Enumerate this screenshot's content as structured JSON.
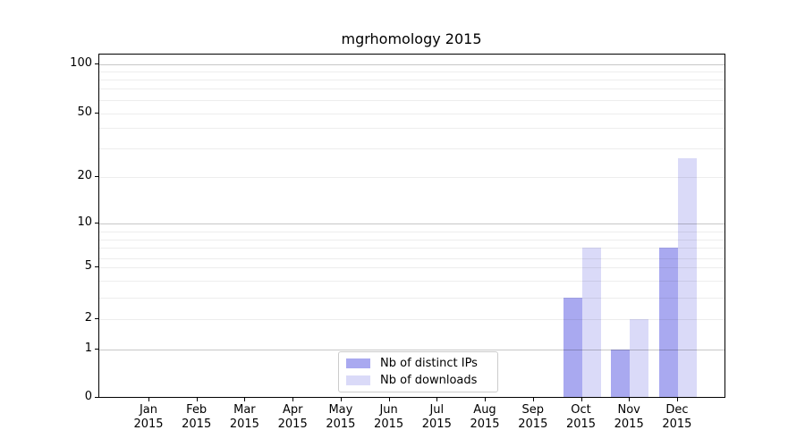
{
  "chart_data": {
    "type": "bar",
    "title": "mgrhomology 2015",
    "year_label": "2015",
    "categories": [
      "Jan",
      "Feb",
      "Mar",
      "Apr",
      "May",
      "Jun",
      "Jul",
      "Aug",
      "Sep",
      "Oct",
      "Nov",
      "Dec"
    ],
    "series": [
      {
        "name": "Nb of distinct IPs",
        "color": "#a9a9f0",
        "values": [
          0,
          0,
          0,
          0,
          0,
          0,
          0,
          0,
          0,
          3,
          1,
          7
        ]
      },
      {
        "name": "Nb of downloads",
        "color": "#dadaf8",
        "values": [
          0,
          0,
          0,
          0,
          0,
          0,
          0,
          0,
          0,
          7,
          2,
          26
        ]
      }
    ],
    "y_scale": "symlog",
    "y_tick_values": [
      0,
      1,
      2,
      5,
      10,
      20,
      50,
      100
    ],
    "y_tick_labels": [
      "0",
      "1",
      "2",
      "5",
      "10",
      "20",
      "50",
      "100"
    ],
    "ylim": [
      0,
      115
    ],
    "grid": "horizontal",
    "legend_position": "lower-center-inside"
  },
  "colors": {
    "background": "#ffffff",
    "bar_distinct_ips": "#a9a9f0",
    "bar_downloads": "#dadaf8",
    "major_grid": "#c7c7c7",
    "minor_grid": "#ececec",
    "axis": "#000000",
    "legend_border": "#cccccc",
    "text": "#000000"
  }
}
